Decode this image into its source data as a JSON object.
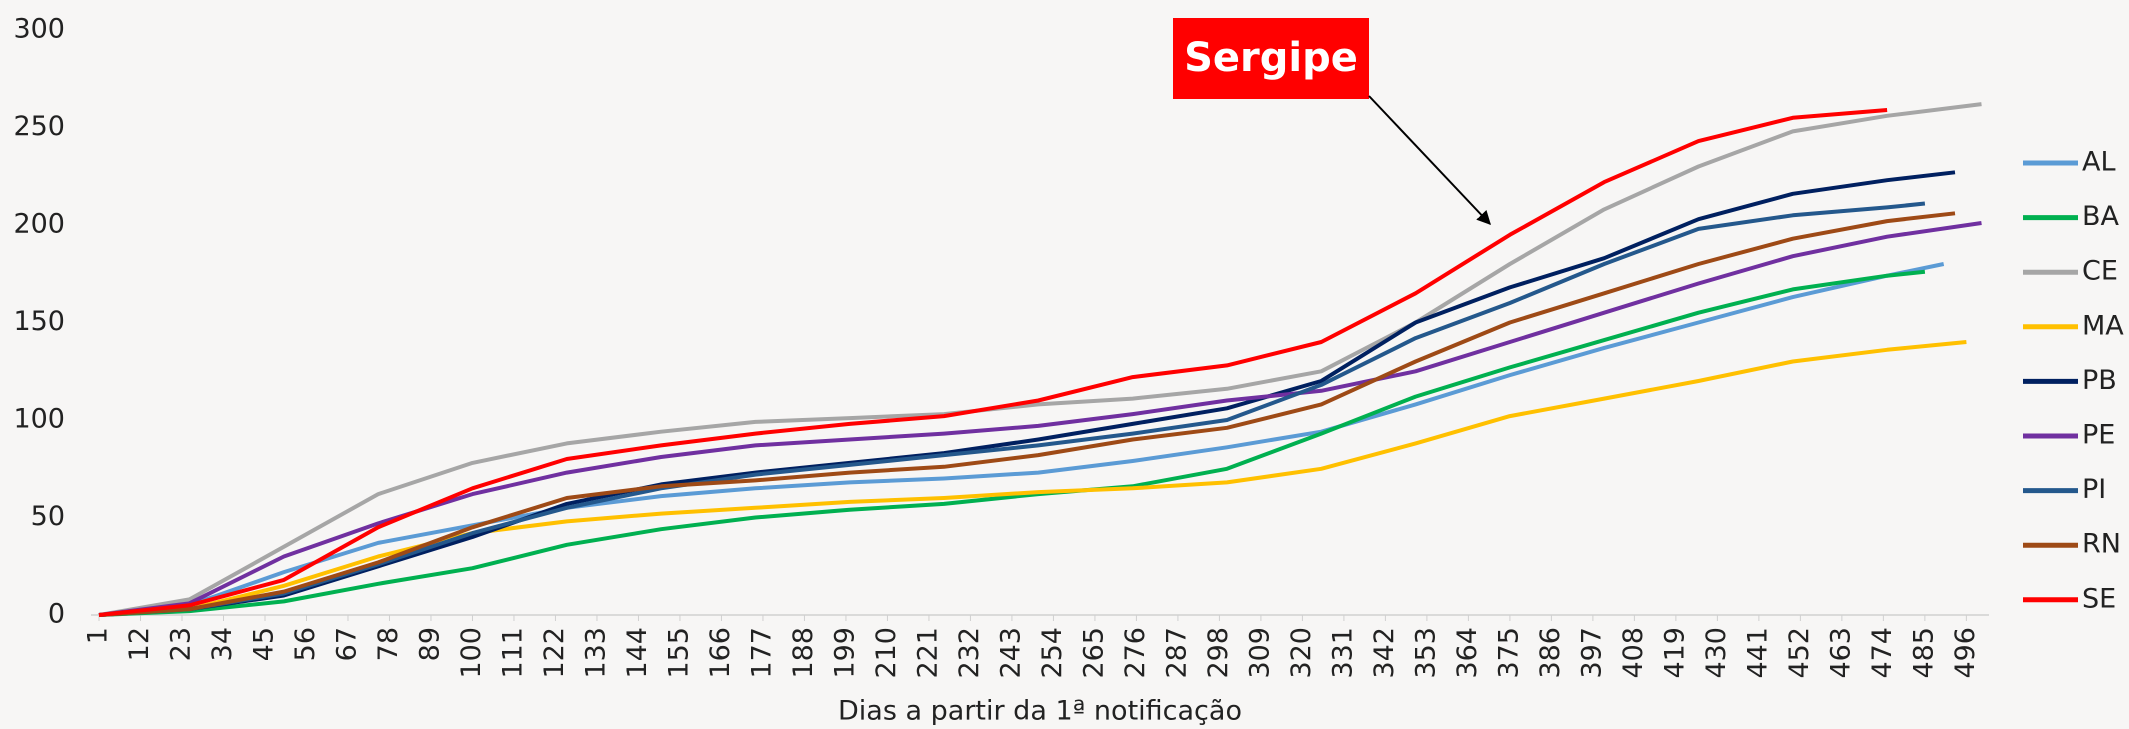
{
  "chart_data": {
    "type": "line",
    "x_label": "Dias a partir da 1ª notificação",
    "annotation": "Sergipe",
    "xlim": [
      1,
      502
    ],
    "ylim": [
      0,
      300
    ],
    "xticks": [
      1,
      12,
      23,
      34,
      45,
      56,
      67,
      78,
      89,
      100,
      111,
      122,
      133,
      144,
      155,
      166,
      177,
      188,
      199,
      210,
      221,
      232,
      243,
      254,
      265,
      276,
      287,
      298,
      309,
      320,
      331,
      342,
      353,
      364,
      375,
      386,
      397,
      408,
      419,
      430,
      441,
      452,
      463,
      474,
      485,
      496
    ],
    "yticks": [
      0,
      50,
      100,
      150,
      200,
      250,
      300
    ],
    "grid": false,
    "legend": "right",
    "series": [
      {
        "name": "AL",
        "color": "#5b9bd5",
        "x": [
          1,
          25,
          50,
          75,
          100,
          125,
          150,
          175,
          200,
          225,
          250,
          275,
          300,
          325,
          350,
          375,
          400,
          425,
          450,
          475,
          490
        ],
        "values": [
          0,
          5,
          22,
          37,
          46,
          55,
          61,
          65,
          68,
          70,
          73,
          79,
          86,
          94,
          108,
          123,
          137,
          150,
          163,
          174,
          180
        ]
      },
      {
        "name": "BA",
        "color": "#00b050",
        "x": [
          1,
          25,
          50,
          75,
          100,
          125,
          150,
          175,
          200,
          225,
          250,
          275,
          300,
          325,
          350,
          375,
          400,
          425,
          450,
          475,
          485
        ],
        "values": [
          0,
          2,
          7,
          16,
          24,
          36,
          44,
          50,
          54,
          57,
          62,
          66,
          75,
          93,
          112,
          127,
          141,
          155,
          167,
          174,
          176
        ]
      },
      {
        "name": "CE",
        "color": "#a6a6a6",
        "x": [
          1,
          25,
          50,
          75,
          100,
          125,
          150,
          175,
          200,
          225,
          250,
          275,
          300,
          325,
          350,
          375,
          400,
          425,
          450,
          475,
          500
        ],
        "values": [
          0,
          8,
          35,
          62,
          78,
          88,
          94,
          99,
          101,
          103,
          108,
          111,
          116,
          125,
          150,
          180,
          208,
          230,
          248,
          256,
          262
        ]
      },
      {
        "name": "MA",
        "color": "#ffc000",
        "x": [
          1,
          25,
          50,
          75,
          100,
          125,
          150,
          175,
          200,
          225,
          250,
          275,
          300,
          325,
          350,
          375,
          400,
          425,
          450,
          475,
          496
        ],
        "values": [
          0,
          3,
          15,
          30,
          42,
          48,
          52,
          55,
          58,
          60,
          63,
          65,
          68,
          75,
          88,
          102,
          111,
          120,
          130,
          136,
          140
        ]
      },
      {
        "name": "PB",
        "color": "#002060",
        "x": [
          1,
          25,
          50,
          75,
          100,
          125,
          150,
          175,
          200,
          225,
          250,
          275,
          300,
          325,
          350,
          375,
          400,
          425,
          450,
          475,
          493
        ],
        "values": [
          0,
          3,
          10,
          25,
          40,
          57,
          67,
          73,
          78,
          83,
          90,
          98,
          106,
          120,
          150,
          168,
          183,
          203,
          216,
          223,
          227
        ]
      },
      {
        "name": "PE",
        "color": "#7030a0",
        "x": [
          1,
          25,
          50,
          75,
          100,
          125,
          150,
          175,
          200,
          225,
          250,
          275,
          300,
          325,
          350,
          375,
          400,
          425,
          450,
          475,
          500
        ],
        "values": [
          0,
          6,
          30,
          47,
          62,
          73,
          81,
          87,
          90,
          93,
          97,
          103,
          110,
          115,
          125,
          140,
          155,
          170,
          184,
          194,
          201
        ]
      },
      {
        "name": "PI",
        "color": "#24588c",
        "x": [
          1,
          25,
          50,
          75,
          100,
          125,
          150,
          175,
          200,
          225,
          250,
          275,
          300,
          325,
          350,
          375,
          400,
          425,
          450,
          475,
          485
        ],
        "values": [
          0,
          3,
          11,
          26,
          42,
          55,
          65,
          72,
          77,
          82,
          87,
          93,
          100,
          118,
          142,
          160,
          180,
          198,
          205,
          209,
          211
        ]
      },
      {
        "name": "RN",
        "color": "#9e4a16",
        "x": [
          1,
          25,
          50,
          75,
          100,
          125,
          150,
          175,
          200,
          225,
          250,
          275,
          300,
          325,
          350,
          375,
          400,
          425,
          450,
          475,
          493
        ],
        "values": [
          0,
          3,
          12,
          27,
          45,
          60,
          66,
          69,
          73,
          76,
          82,
          90,
          96,
          108,
          130,
          150,
          165,
          180,
          193,
          202,
          206
        ]
      },
      {
        "name": "SE",
        "color": "#ff0000",
        "x": [
          1,
          25,
          50,
          75,
          100,
          125,
          150,
          175,
          200,
          225,
          250,
          275,
          300,
          325,
          350,
          375,
          400,
          425,
          450,
          475
        ],
        "values": [
          0,
          5,
          18,
          45,
          65,
          80,
          87,
          93,
          98,
          102,
          110,
          122,
          128,
          140,
          165,
          195,
          222,
          243,
          255,
          259
        ]
      }
    ]
  }
}
